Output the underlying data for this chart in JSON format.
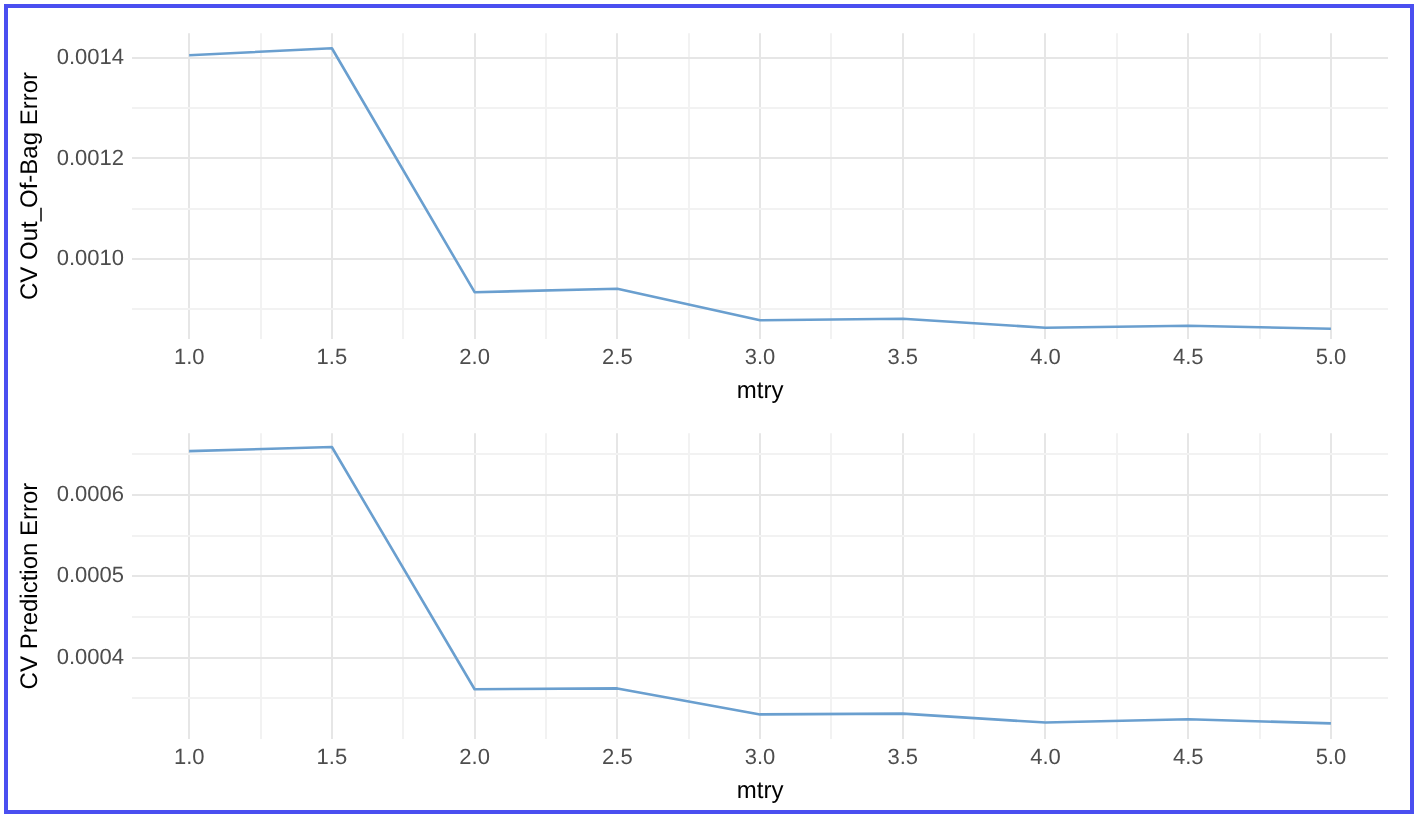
{
  "chart_data": [
    {
      "type": "line",
      "xlabel": "mtry",
      "ylabel": "CV Out_Of-Bag Error",
      "grid": true,
      "legend": false,
      "marker": "none",
      "line_style": "solid",
      "x": [
        1.0,
        1.5,
        2.0,
        2.5,
        3.0,
        3.5,
        4.0,
        4.5,
        5.0
      ],
      "series": [
        {
          "color": "#6a9fcf",
          "values": [
            0.001406,
            0.00142,
            0.000933,
            0.00094,
            0.000877,
            0.00088,
            0.000862,
            0.000866,
            0.00086
          ]
        }
      ],
      "xlim": [
        0.8,
        5.2
      ],
      "xticks": [
        {
          "value": 1,
          "label": "1.0"
        },
        {
          "value": 1.25,
          "label": null
        },
        {
          "value": 1.5,
          "label": "1.5"
        },
        {
          "value": 1.75,
          "label": null
        },
        {
          "value": 2,
          "label": "2.0"
        },
        {
          "value": 2.25,
          "label": null
        },
        {
          "value": 2.5,
          "label": "2.5"
        },
        {
          "value": 2.75,
          "label": null
        },
        {
          "value": 3,
          "label": "3.0"
        },
        {
          "value": 3.25,
          "label": null
        },
        {
          "value": 3.5,
          "label": "3.5"
        },
        {
          "value": 3.75,
          "label": null
        },
        {
          "value": 4,
          "label": "4.0"
        },
        {
          "value": 4.25,
          "label": null
        },
        {
          "value": 4.5,
          "label": "4.5"
        },
        {
          "value": 4.75,
          "label": null
        },
        {
          "value": 5,
          "label": "5.0"
        }
      ],
      "ylim": [
        0.00084,
        0.00145
      ],
      "yticks": [
        {
          "value": 0.0009,
          "label": null
        },
        {
          "value": 0.001,
          "label": "0.0010"
        },
        {
          "value": 0.0011,
          "label": null
        },
        {
          "value": 0.0012,
          "label": "0.0012"
        },
        {
          "value": 0.0013,
          "label": null
        },
        {
          "value": 0.0014,
          "label": "0.0014"
        }
      ]
    },
    {
      "type": "line",
      "xlabel": "mtry",
      "ylabel": "CV Prediction Error",
      "grid": true,
      "legend": false,
      "marker": "none",
      "line_style": "solid",
      "x": [
        1.0,
        1.5,
        2.0,
        2.5,
        3.0,
        3.5,
        4.0,
        4.5,
        5.0
      ],
      "series": [
        {
          "color": "#6a9fcf",
          "values": [
            0.000654,
            0.000659,
            0.000361,
            0.000362,
            0.00033,
            0.000331,
            0.00032,
            0.000324,
            0.000319
          ]
        }
      ],
      "xlim": [
        0.8,
        5.2
      ],
      "xticks": [
        {
          "value": 1,
          "label": "1.0"
        },
        {
          "value": 1.25,
          "label": null
        },
        {
          "value": 1.5,
          "label": "1.5"
        },
        {
          "value": 1.75,
          "label": null
        },
        {
          "value": 2,
          "label": "2.0"
        },
        {
          "value": 2.25,
          "label": null
        },
        {
          "value": 2.5,
          "label": "2.5"
        },
        {
          "value": 2.75,
          "label": null
        },
        {
          "value": 3,
          "label": "3.0"
        },
        {
          "value": 3.25,
          "label": null
        },
        {
          "value": 3.5,
          "label": "3.5"
        },
        {
          "value": 3.75,
          "label": null
        },
        {
          "value": 4,
          "label": "4.0"
        },
        {
          "value": 4.25,
          "label": null
        },
        {
          "value": 4.5,
          "label": "4.5"
        },
        {
          "value": 4.75,
          "label": null
        },
        {
          "value": 5,
          "label": "5.0"
        }
      ],
      "ylim": [
        0.0003,
        0.000676
      ],
      "yticks": [
        {
          "value": 0.00035,
          "label": null
        },
        {
          "value": 0.0004,
          "label": "0.0004"
        },
        {
          "value": 0.00045,
          "label": null
        },
        {
          "value": 0.0005,
          "label": "0.0005"
        },
        {
          "value": 0.00055,
          "label": null
        },
        {
          "value": 0.0006,
          "label": "0.0006"
        },
        {
          "value": 0.00065,
          "label": null
        }
      ]
    }
  ]
}
